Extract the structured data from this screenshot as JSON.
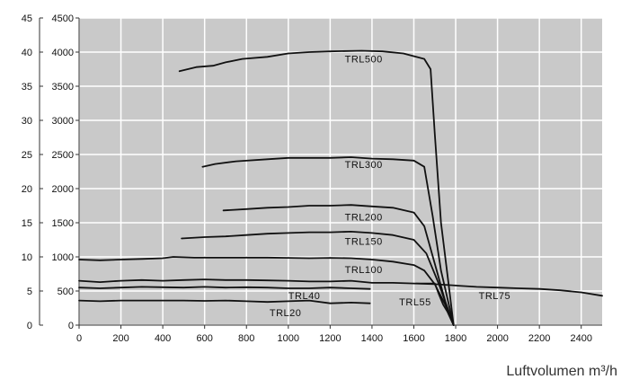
{
  "chart_data": {
    "type": "line",
    "xlabel": "Luftvolumen m³/h",
    "xlim": [
      0,
      2500
    ],
    "ylim": [
      0,
      4500
    ],
    "y2lim": [
      0,
      45
    ],
    "x_ticks": [
      0,
      200,
      400,
      600,
      800,
      1000,
      1200,
      1400,
      1600,
      1800,
      2000,
      2200,
      2400
    ],
    "y_ticks": [
      0,
      500,
      1000,
      1500,
      2000,
      2500,
      3000,
      3500,
      4000,
      4500
    ],
    "y2_ticks": [
      0,
      5,
      10,
      15,
      20,
      25,
      30,
      35,
      40,
      45
    ],
    "grid": true,
    "colors": {
      "plot_bg": "#c9c9c9",
      "grid": "#ffffff",
      "line": "#111111"
    },
    "series": [
      {
        "name": "TRL500",
        "label_at": [
          1270,
          3850
        ],
        "points": [
          [
            480,
            3720
          ],
          [
            560,
            3780
          ],
          [
            640,
            3800
          ],
          [
            700,
            3850
          ],
          [
            780,
            3900
          ],
          [
            900,
            3930
          ],
          [
            1000,
            3980
          ],
          [
            1100,
            4000
          ],
          [
            1200,
            4010
          ],
          [
            1350,
            4020
          ],
          [
            1450,
            4010
          ],
          [
            1550,
            3980
          ],
          [
            1650,
            3900
          ],
          [
            1680,
            3750
          ],
          [
            1700,
            2800
          ],
          [
            1730,
            1500
          ],
          [
            1770,
            500
          ],
          [
            1790,
            0
          ]
        ]
      },
      {
        "name": "TRL300",
        "label_at": [
          1270,
          2300
        ],
        "points": [
          [
            590,
            2320
          ],
          [
            650,
            2360
          ],
          [
            750,
            2400
          ],
          [
            900,
            2430
          ],
          [
            1000,
            2450
          ],
          [
            1100,
            2450
          ],
          [
            1200,
            2450
          ],
          [
            1300,
            2460
          ],
          [
            1400,
            2440
          ],
          [
            1500,
            2430
          ],
          [
            1600,
            2410
          ],
          [
            1650,
            2320
          ],
          [
            1690,
            1600
          ],
          [
            1730,
            800
          ],
          [
            1790,
            0
          ]
        ]
      },
      {
        "name": "TRL200",
        "label_at": [
          1270,
          1530
        ],
        "points": [
          [
            690,
            1680
          ],
          [
            800,
            1700
          ],
          [
            900,
            1720
          ],
          [
            1000,
            1730
          ],
          [
            1100,
            1750
          ],
          [
            1200,
            1750
          ],
          [
            1300,
            1760
          ],
          [
            1400,
            1740
          ],
          [
            1500,
            1720
          ],
          [
            1600,
            1650
          ],
          [
            1650,
            1450
          ],
          [
            1700,
            900
          ],
          [
            1750,
            350
          ],
          [
            1790,
            0
          ]
        ]
      },
      {
        "name": "TRL150",
        "label_at": [
          1270,
          1180
        ],
        "points": [
          [
            490,
            1270
          ],
          [
            600,
            1290
          ],
          [
            700,
            1300
          ],
          [
            800,
            1320
          ],
          [
            900,
            1340
          ],
          [
            1000,
            1350
          ],
          [
            1100,
            1360
          ],
          [
            1200,
            1360
          ],
          [
            1300,
            1370
          ],
          [
            1400,
            1350
          ],
          [
            1500,
            1320
          ],
          [
            1600,
            1250
          ],
          [
            1660,
            1050
          ],
          [
            1720,
            600
          ],
          [
            1790,
            0
          ]
        ]
      },
      {
        "name": "TRL100",
        "label_at": [
          1270,
          760
        ],
        "points": [
          [
            0,
            960
          ],
          [
            100,
            950
          ],
          [
            200,
            960
          ],
          [
            300,
            970
          ],
          [
            400,
            980
          ],
          [
            450,
            1000
          ],
          [
            550,
            990
          ],
          [
            700,
            990
          ],
          [
            900,
            990
          ],
          [
            1000,
            985
          ],
          [
            1100,
            980
          ],
          [
            1200,
            985
          ],
          [
            1300,
            980
          ],
          [
            1400,
            960
          ],
          [
            1500,
            930
          ],
          [
            1600,
            880
          ],
          [
            1650,
            800
          ],
          [
            1700,
            600
          ],
          [
            1750,
            300
          ],
          [
            1790,
            0
          ]
        ]
      },
      {
        "name": "TRL75",
        "label_at": [
          1910,
          380
        ],
        "points": [
          [
            0,
            650
          ],
          [
            100,
            630
          ],
          [
            200,
            650
          ],
          [
            300,
            660
          ],
          [
            400,
            650
          ],
          [
            500,
            660
          ],
          [
            600,
            670
          ],
          [
            700,
            660
          ],
          [
            800,
            660
          ],
          [
            900,
            655
          ],
          [
            1000,
            650
          ],
          [
            1100,
            640
          ],
          [
            1200,
            640
          ],
          [
            1300,
            650
          ],
          [
            1400,
            620
          ],
          [
            1500,
            620
          ],
          [
            1600,
            610
          ],
          [
            1700,
            600
          ],
          [
            1800,
            580
          ],
          [
            1900,
            560
          ],
          [
            2000,
            550
          ],
          [
            2100,
            540
          ],
          [
            2200,
            530
          ],
          [
            2300,
            510
          ],
          [
            2400,
            480
          ],
          [
            2500,
            430
          ]
        ]
      },
      {
        "name": "TRL55",
        "label_at": [
          1530,
          290
        ],
        "points": [
          [
            1610,
            610
          ],
          [
            1700,
            610
          ],
          [
            1720,
            450
          ],
          [
            1740,
            300
          ],
          [
            1760,
            200
          ],
          [
            1790,
            0
          ]
        ]
      },
      {
        "name": "TRL40",
        "label_at": [
          1000,
          380
        ],
        "points": [
          [
            0,
            550
          ],
          [
            100,
            540
          ],
          [
            200,
            550
          ],
          [
            300,
            560
          ],
          [
            400,
            555
          ],
          [
            500,
            550
          ],
          [
            600,
            560
          ],
          [
            700,
            550
          ],
          [
            800,
            555
          ],
          [
            900,
            550
          ],
          [
            1000,
            540
          ],
          [
            1100,
            540
          ],
          [
            1200,
            550
          ],
          [
            1300,
            540
          ],
          [
            1390,
            530
          ]
        ]
      },
      {
        "name": "TRL20",
        "label_at": [
          910,
          130
        ],
        "points": [
          [
            0,
            360
          ],
          [
            100,
            350
          ],
          [
            200,
            360
          ],
          [
            300,
            360
          ],
          [
            400,
            360
          ],
          [
            500,
            360
          ],
          [
            600,
            355
          ],
          [
            700,
            360
          ],
          [
            800,
            350
          ],
          [
            900,
            340
          ],
          [
            1000,
            350
          ],
          [
            1100,
            360
          ],
          [
            1200,
            320
          ],
          [
            1300,
            330
          ],
          [
            1390,
            320
          ]
        ]
      }
    ]
  }
}
